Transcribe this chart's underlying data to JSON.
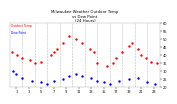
{
  "title": "Milwaukee Weather Outdoor Temp\nvs Dew Point\n(24 Hours)",
  "bg_color": "#ffffff",
  "plot_bg_color": "#ffffff",
  "text_color": "#000000",
  "grid_color": "#aaaaaa",
  "temp_color": "#ff0000",
  "dew_color": "#0000ff",
  "ylim": [
    20,
    60
  ],
  "xlim": [
    0,
    24
  ],
  "ytick_vals": [
    20,
    25,
    30,
    35,
    40,
    45,
    50,
    55,
    60
  ],
  "ytick_labels": [
    "20",
    "25",
    "30",
    "35",
    "40",
    "45",
    "50",
    "55",
    "60"
  ],
  "xtick_vals": [
    1,
    3,
    5,
    7,
    9,
    11,
    13,
    15,
    17,
    19,
    21,
    23
  ],
  "vgrid_positions": [
    2,
    4,
    6,
    8,
    10,
    12,
    14,
    16,
    18,
    20,
    22
  ],
  "temp_x": [
    0.3,
    1.2,
    2.0,
    3.2,
    4.0,
    5.0,
    6.5,
    7.0,
    7.5,
    8.5,
    9.5,
    10.5,
    11.5,
    12.8,
    13.5,
    14.0,
    15.5,
    16.5,
    17.0,
    18.0,
    19.0,
    19.5,
    20.5,
    21.0,
    21.8,
    22.5,
    23.5
  ],
  "temp_y": [
    42,
    40,
    38,
    37,
    35,
    36,
    40,
    42,
    44,
    48,
    52,
    50,
    48,
    44,
    42,
    35,
    33,
    35,
    38,
    42,
    46,
    48,
    44,
    40,
    38,
    36,
    35
  ],
  "dew_x": [
    0.5,
    1.0,
    2.0,
    3.5,
    5.0,
    6.0,
    7.0,
    8.5,
    9.5,
    10.5,
    11.5,
    13.0,
    14.0,
    15.0,
    16.0,
    17.5,
    19.0,
    20.5,
    22.0,
    23.2
  ],
  "dew_y": [
    30,
    28,
    26,
    24,
    23,
    22,
    24,
    25,
    27,
    28,
    27,
    26,
    24,
    23,
    22,
    24,
    25,
    26,
    23,
    22
  ],
  "legend_temp": "Outdoor Temp",
  "legend_dew": "Dew Point",
  "marker_size": 3
}
